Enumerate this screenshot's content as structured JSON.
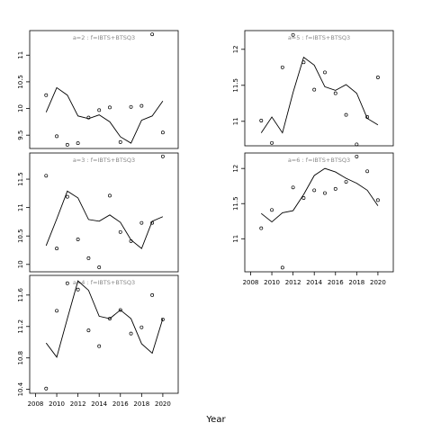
{
  "xlabel": "Year",
  "chart_data": [
    {
      "type": "line",
      "title": "a=2 : f=IBTS+BTSQ3",
      "x": [
        2009,
        2010,
        2011,
        2012,
        2013,
        2014,
        2015,
        2016,
        2017,
        2018,
        2019,
        2020
      ],
      "xlim": [
        2007.45,
        2021.45
      ],
      "ylim": [
        9.25,
        11.46
      ],
      "yticks": [
        9.5,
        10.0,
        10.5,
        11.0
      ],
      "series": [
        {
          "style": "line",
          "color": "#000000",
          "values": [
            9.93,
            10.39,
            10.25,
            9.86,
            9.81,
            9.88,
            9.75,
            9.47,
            9.35,
            9.78,
            9.86,
            10.14
          ]
        },
        {
          "style": "points",
          "color": "#000000",
          "values": [
            10.25,
            9.48,
            9.32,
            9.35,
            9.83,
            9.97,
            10.02,
            9.37,
            10.03,
            10.05,
            11.39,
            9.55
          ]
        }
      ]
    },
    {
      "type": "line",
      "title": "a=3 : f=IBTS+BTSQ3",
      "x": [
        2009,
        2010,
        2011,
        2012,
        2013,
        2014,
        2015,
        2016,
        2017,
        2018,
        2019,
        2020
      ],
      "xlim": [
        2007.45,
        2021.45
      ],
      "ylim": [
        9.87,
        11.96
      ],
      "yticks": [
        10.0,
        10.5,
        11.0,
        11.5
      ],
      "series": [
        {
          "style": "line",
          "color": "#000000",
          "values": [
            10.33,
            10.8,
            11.29,
            11.17,
            10.79,
            10.76,
            10.87,
            10.74,
            10.43,
            10.28,
            10.76,
            10.84
          ]
        },
        {
          "style": "points",
          "color": "#000000",
          "values": [
            11.56,
            10.28,
            11.19,
            10.44,
            10.11,
            9.95,
            11.21,
            10.57,
            10.41,
            10.73,
            10.73,
            11.9
          ]
        }
      ]
    },
    {
      "type": "line",
      "title": "a=4 : f=IBTS+BTSQ3",
      "x": [
        2009,
        2010,
        2011,
        2012,
        2013,
        2014,
        2015,
        2016,
        2017,
        2018,
        2019,
        2020
      ],
      "xlim": [
        2007.45,
        2021.45
      ],
      "xticks": [
        2008,
        2010,
        2012,
        2014,
        2016,
        2018,
        2020
      ],
      "ylim": [
        10.35,
        11.85
      ],
      "yticks": [
        10.4,
        10.8,
        11.2,
        11.6
      ],
      "series": [
        {
          "style": "line",
          "color": "#000000",
          "values": [
            10.99,
            10.81,
            11.3,
            11.78,
            11.66,
            11.33,
            11.3,
            11.41,
            11.3,
            10.98,
            10.86,
            11.3
          ]
        },
        {
          "style": "points",
          "color": "#000000",
          "values": [
            10.41,
            11.4,
            11.75,
            11.67,
            11.15,
            10.95,
            11.3,
            11.41,
            11.11,
            11.19,
            11.6,
            11.29
          ]
        }
      ]
    },
    {
      "type": "line",
      "title": "a=5 : f=IBTS+BTSQ3",
      "x": [
        2009,
        2010,
        2011,
        2012,
        2013,
        2014,
        2015,
        2016,
        2017,
        2018,
        2019,
        2020
      ],
      "xlim": [
        2007.45,
        2021.45
      ],
      "ylim": [
        10.66,
        12.26
      ],
      "yticks": [
        11.0,
        11.5,
        12.0
      ],
      "series": [
        {
          "style": "line",
          "color": "#000000",
          "values": [
            10.84,
            11.06,
            10.84,
            11.4,
            11.89,
            11.78,
            11.48,
            11.43,
            11.51,
            11.39,
            11.04,
            10.95
          ]
        },
        {
          "style": "points",
          "color": "#000000",
          "values": [
            11.01,
            10.7,
            11.75,
            12.2,
            11.82,
            11.44,
            11.68,
            11.39,
            11.09,
            10.68,
            11.06,
            11.61
          ]
        }
      ]
    },
    {
      "type": "line",
      "title": "a=6 : f=IBTS+BTSQ3",
      "x": [
        2009,
        2010,
        2011,
        2012,
        2013,
        2014,
        2015,
        2016,
        2017,
        2018,
        2019,
        2020
      ],
      "xlim": [
        2007.45,
        2021.45
      ],
      "xticks": [
        2008,
        2010,
        2012,
        2014,
        2016,
        2018,
        2020
      ],
      "ylim": [
        10.53,
        12.22
      ],
      "yticks": [
        11.0,
        11.5,
        12.0
      ],
      "series": [
        {
          "style": "line",
          "color": "#000000",
          "values": [
            11.36,
            11.24,
            11.37,
            11.4,
            11.63,
            11.9,
            12.0,
            11.95,
            11.86,
            11.79,
            11.69,
            11.47
          ]
        },
        {
          "style": "points",
          "color": "#000000",
          "values": [
            11.15,
            11.41,
            10.59,
            11.73,
            11.58,
            11.69,
            11.65,
            11.71,
            11.81,
            12.17,
            11.96,
            11.55
          ]
        }
      ]
    }
  ]
}
